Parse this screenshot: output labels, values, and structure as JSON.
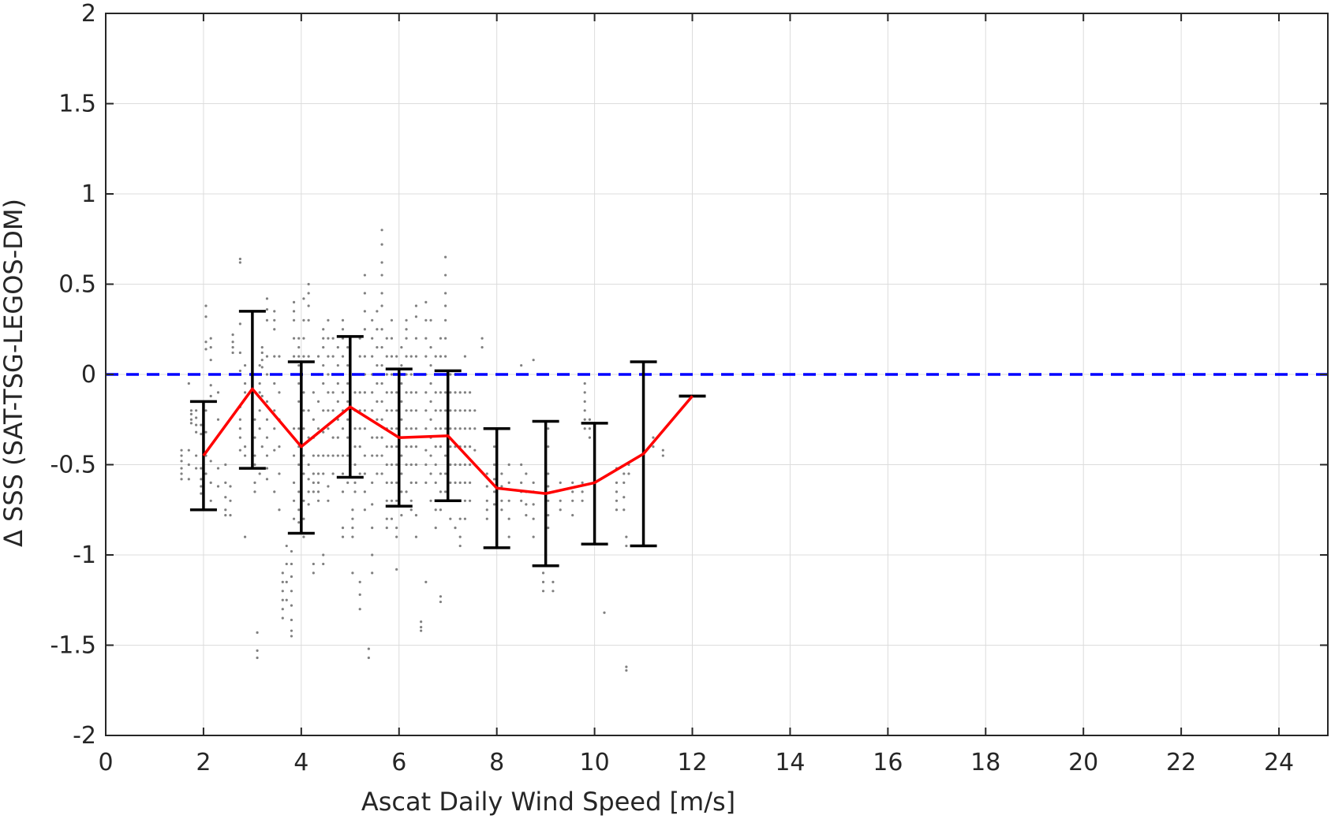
{
  "chart_data": {
    "type": "scatter",
    "title": "",
    "xlabel": "Ascat Daily Wind Speed [m/s]",
    "ylabel": "Δ SSS (SAT-TSG-LEGOS-DM)",
    "xlim": [
      0,
      25
    ],
    "ylim": [
      -2,
      2
    ],
    "xticks": [
      0,
      2,
      4,
      6,
      8,
      10,
      12,
      14,
      16,
      18,
      20,
      22,
      24
    ],
    "yticks": [
      -2,
      -1.5,
      -1,
      -0.5,
      0,
      0.5,
      1,
      1.5,
      2
    ],
    "grid": true,
    "legend": "none",
    "colors": {
      "scatter": "#808080",
      "mean_line": "#ff0000",
      "error_bars": "#000000",
      "reference_line": "#0000ff",
      "grid": "#dcdcdc",
      "axes": "#262626"
    },
    "reference_line": {
      "y": 0,
      "style": "dashed"
    },
    "mean_line": {
      "x": [
        2,
        3,
        4,
        5,
        6,
        7,
        8,
        9,
        10,
        11,
        12
      ],
      "y": [
        -0.45,
        -0.08,
        -0.4,
        -0.18,
        -0.35,
        -0.34,
        -0.63,
        -0.66,
        -0.6,
        -0.44,
        -0.12
      ]
    },
    "error_bars": [
      {
        "x": 2,
        "lower": -0.75,
        "upper": -0.15
      },
      {
        "x": 3,
        "lower": -0.52,
        "upper": 0.35
      },
      {
        "x": 4,
        "lower": -0.88,
        "upper": 0.07
      },
      {
        "x": 5,
        "lower": -0.57,
        "upper": 0.21
      },
      {
        "x": 6,
        "lower": -0.73,
        "upper": 0.03
      },
      {
        "x": 7,
        "lower": -0.7,
        "upper": 0.02
      },
      {
        "x": 8,
        "lower": -0.96,
        "upper": -0.3
      },
      {
        "x": 9,
        "lower": -1.06,
        "upper": -0.26
      },
      {
        "x": 10,
        "lower": -0.94,
        "upper": -0.27
      },
      {
        "x": 11,
        "lower": -0.95,
        "upper": 0.07
      },
      {
        "x": 12,
        "lower": -0.12,
        "upper": -0.12
      }
    ],
    "scatter_clusters": [
      {
        "x": 1.55,
        "y": [
          -0.42,
          -0.45,
          -0.48,
          -0.52,
          -0.55,
          -0.58
        ]
      },
      {
        "x": 1.7,
        "y": [
          -0.05,
          -0.42,
          -0.5,
          -0.58
        ]
      },
      {
        "x": 1.75,
        "y": [
          -0.2,
          -0.22,
          -0.25,
          -0.27
        ]
      },
      {
        "x": 1.85,
        "y": [
          -0.2,
          -0.24,
          -0.28,
          -0.32,
          -0.45,
          -0.52
        ]
      },
      {
        "x": 1.95,
        "y": [
          -0.28,
          -0.33,
          -0.52,
          -0.58,
          -0.62,
          -0.66
        ]
      },
      {
        "x": 2.05,
        "y": [
          0.38,
          0.32,
          0.18,
          0.14,
          -0.2,
          -0.32,
          -0.45,
          -0.55
        ]
      },
      {
        "x": 2.15,
        "y": [
          0.2,
          0.15,
          0.08,
          -0.06,
          -0.12,
          -0.48,
          -0.6,
          -0.7
        ]
      },
      {
        "x": 2.3,
        "y": [
          -0.1,
          -0.25,
          -0.52,
          -0.62
        ]
      },
      {
        "x": 2.45,
        "y": [
          -0.5,
          -0.6,
          -0.68,
          -0.75,
          -0.78
        ]
      },
      {
        "x": 2.55,
        "y": [
          -0.62,
          -0.7,
          -0.78
        ]
      },
      {
        "x": 2.6,
        "y": [
          0.22,
          0.18,
          0.15,
          0.12
        ]
      },
      {
        "x": 2.75,
        "y": [
          0.64,
          0.62,
          0.28,
          0.12,
          0.02,
          -0.18,
          -0.25,
          -0.3,
          -0.35,
          -0.42
        ]
      },
      {
        "x": 2.85,
        "y": [
          0.05,
          -0.05,
          -0.1,
          -0.4,
          -0.45,
          -0.52,
          -0.9
        ]
      },
      {
        "x": 3.05,
        "y": [
          -0.25,
          -0.35,
          -0.45,
          -0.5,
          -0.6,
          -0.65
        ]
      },
      {
        "x": 3.1,
        "y": [
          -1.43,
          -1.53,
          -1.57
        ]
      },
      {
        "x": 3.15,
        "y": [
          0.05,
          -0.05,
          -0.1,
          -0.2,
          -0.3,
          -0.55
        ]
      },
      {
        "x": 3.2,
        "y": [
          0.15,
          0.12,
          0.08,
          0.04,
          -0.12,
          -0.4
        ]
      },
      {
        "x": 3.3,
        "y": [
          0.42,
          0.36,
          0.3,
          0.1,
          0.0,
          -0.15,
          -0.25,
          -0.35,
          -0.45,
          -0.52,
          -0.58
        ]
      },
      {
        "x": 3.45,
        "y": [
          0.35,
          0.3,
          0.25,
          0.1,
          -0.05,
          -0.2,
          -0.3,
          -0.42,
          -0.65
        ]
      },
      {
        "x": 3.55,
        "y": [
          0.1,
          0.0,
          -0.1,
          -0.25,
          -0.4,
          -0.55,
          -0.75
        ]
      },
      {
        "x": 3.62,
        "y": [
          -1.1,
          -1.15,
          -1.2,
          -1.25,
          -1.3,
          -1.35
        ]
      },
      {
        "x": 3.7,
        "y": [
          -0.95,
          -1.05,
          -1.15,
          -1.25
        ]
      },
      {
        "x": 3.8,
        "y": [
          -0.98,
          -1.05,
          -1.12,
          -1.2,
          -1.28,
          -1.36,
          -1.42,
          -1.45
        ]
      },
      {
        "x": 3.85,
        "y": [
          0.4,
          0.35,
          0.3,
          0.2,
          0.1,
          0.0,
          -0.3,
          -0.45,
          -0.6,
          -0.7,
          -0.8
        ]
      },
      {
        "x": 3.95,
        "y": [
          0.2,
          0.15,
          0.1,
          0.05,
          -0.05,
          -0.15,
          -0.3,
          -0.4,
          -0.5,
          -0.65,
          -0.75,
          -0.82
        ]
      },
      {
        "x": 4.05,
        "y": [
          0.42,
          0.3,
          0.2,
          0.1,
          -0.1,
          -0.2,
          -0.3,
          -0.45,
          -0.55,
          -0.7,
          -0.8,
          -0.9
        ]
      },
      {
        "x": 4.15,
        "y": [
          0.5,
          0.45,
          0.38,
          0.3,
          0.1,
          -0.2,
          -0.35,
          -0.5,
          -0.58,
          -0.65,
          -0.72
        ]
      },
      {
        "x": 4.25,
        "y": [
          0.0,
          -0.1,
          -0.25,
          -0.35,
          -0.45,
          -0.55,
          -0.6,
          -0.65,
          -1.05,
          -1.1
        ]
      },
      {
        "x": 4.35,
        "y": [
          0.1,
          0.0,
          -0.15,
          -0.3,
          -0.45,
          -0.55,
          -0.6,
          -0.65,
          -0.7
        ]
      },
      {
        "x": 4.45,
        "y": [
          0.25,
          0.2,
          0.15,
          0.05,
          -0.05,
          -0.2,
          -0.32,
          -0.45,
          -0.55,
          -1.0,
          -1.05
        ]
      },
      {
        "x": 4.55,
        "y": [
          0.3,
          0.2,
          0.1,
          0.0,
          -0.1,
          -0.2,
          -0.3,
          -0.45,
          -0.62,
          -0.7
        ]
      },
      {
        "x": 4.65,
        "y": [
          0.2,
          0.1,
          0.0,
          -0.1,
          -0.2,
          -0.35,
          -0.45,
          -0.55
        ]
      },
      {
        "x": 4.75,
        "y": [
          0.15,
          0.05,
          -0.05,
          -0.15,
          -0.25,
          -0.35,
          -0.45
        ]
      },
      {
        "x": 4.85,
        "y": [
          0.3,
          0.25,
          0.2,
          0.1,
          0.0,
          -0.1,
          -0.2,
          -0.3,
          -0.45,
          -0.55,
          -0.65,
          -0.85,
          -0.9
        ]
      },
      {
        "x": 4.95,
        "y": [
          0.15,
          0.05,
          -0.05,
          -0.15,
          -0.25,
          -0.35,
          -0.45,
          -0.6
        ]
      },
      {
        "x": 5.05,
        "y": [
          -0.75,
          -0.8,
          -0.85,
          -0.9,
          -1.1
        ]
      },
      {
        "x": 5.1,
        "y": [
          0.0,
          -0.1,
          -0.2,
          -0.3,
          -0.4,
          -0.5,
          -0.6,
          -0.65
        ]
      },
      {
        "x": 5.2,
        "y": [
          0.2,
          0.1,
          0.0,
          -0.1,
          -0.2,
          -0.3,
          -0.4,
          -0.55,
          -1.15,
          -1.22,
          -1.3
        ]
      },
      {
        "x": 5.3,
        "y": [
          0.55,
          0.45,
          0.35,
          0.25,
          0.1,
          0.0,
          -0.1,
          -0.2,
          -0.3,
          -0.45,
          -0.55,
          -0.65,
          -0.75
        ]
      },
      {
        "x": 5.38,
        "y": [
          -1.52,
          -1.57
        ]
      },
      {
        "x": 5.45,
        "y": [
          0.3,
          0.2,
          0.1,
          0.0,
          -0.1,
          -0.2,
          -0.35,
          -0.45,
          -0.6,
          -0.72,
          -0.85,
          -1.0,
          -1.1
        ]
      },
      {
        "x": 5.55,
        "y": [
          0.35,
          0.25,
          0.15,
          0.05,
          -0.05,
          -0.15,
          -0.25,
          -0.35,
          -0.45,
          -0.55
        ]
      },
      {
        "x": 5.65,
        "y": [
          0.8,
          0.72,
          0.62,
          0.55,
          0.45,
          0.38,
          0.25,
          0.15,
          0.05,
          -0.05,
          -0.15,
          -0.25,
          -0.35,
          -0.45,
          -0.55
        ]
      },
      {
        "x": 5.75,
        "y": [
          0.2,
          0.1,
          0.0,
          -0.1,
          -0.2,
          -0.3,
          -0.4,
          -0.5,
          -0.6,
          -0.7,
          -0.8,
          -0.85
        ]
      },
      {
        "x": 5.85,
        "y": [
          0.3,
          0.2,
          0.1,
          0.0,
          -0.1,
          -0.2,
          -0.3,
          -0.4,
          -0.5,
          -0.6,
          -0.7,
          -0.8
        ]
      },
      {
        "x": 5.95,
        "y": [
          0.1,
          0.0,
          -0.1,
          -0.2,
          -0.3,
          -0.4,
          -0.5,
          -0.6,
          -0.7,
          -0.85,
          -0.9,
          -1.08
        ]
      },
      {
        "x": 6.05,
        "y": [
          0.15,
          0.05,
          -0.05,
          -0.15,
          -0.25,
          -0.35,
          -0.45,
          -0.55,
          -0.65,
          -0.78
        ]
      },
      {
        "x": 6.15,
        "y": [
          0.3,
          0.25,
          0.2,
          0.1,
          0.0,
          -0.1,
          -0.2,
          -0.3,
          -0.4,
          -0.5,
          -0.65
        ]
      },
      {
        "x": 6.25,
        "y": [
          0.1,
          0.0,
          -0.1,
          -0.2,
          -0.3,
          -0.4,
          -0.5,
          -0.6,
          -0.7,
          -0.75
        ]
      },
      {
        "x": 6.35,
        "y": [
          0.38,
          0.32,
          0.2,
          0.1,
          0.0,
          -0.1,
          -0.2,
          -0.3,
          -0.4,
          -0.5,
          -0.6,
          -0.78,
          -0.9
        ]
      },
      {
        "x": 6.45,
        "y": [
          -1.37,
          -1.4,
          -1.42
        ]
      },
      {
        "x": 6.55,
        "y": [
          0.4,
          0.3,
          0.2,
          0.1,
          0.0,
          -0.1,
          -0.2,
          -0.3,
          -0.42,
          -0.5,
          -0.6,
          -1.15
        ]
      },
      {
        "x": 6.65,
        "y": [
          0.3,
          0.15,
          0.05,
          -0.05,
          -0.15,
          -0.25,
          -0.35,
          -0.45,
          -0.55,
          -0.7
        ]
      },
      {
        "x": 6.75,
        "y": [
          0.1,
          0.0,
          -0.1,
          -0.2,
          -0.3,
          -0.4,
          -0.5,
          -0.6,
          -0.75,
          -0.85
        ]
      },
      {
        "x": 6.85,
        "y": [
          0.2,
          0.1,
          0.0,
          -0.1,
          -0.2,
          -0.3,
          -0.4,
          -0.55,
          -0.65,
          -0.75,
          -1.23,
          -1.26
        ]
      },
      {
        "x": 6.95,
        "y": [
          0.65,
          0.55,
          0.45,
          0.38,
          0.3,
          0.2,
          0.1,
          0.0,
          -0.1,
          -0.2,
          -0.3,
          -0.45,
          -0.55,
          -0.65
        ]
      },
      {
        "x": 7.05,
        "y": [
          0.0,
          -0.1,
          -0.2,
          -0.3,
          -0.4,
          -0.5,
          -0.6,
          -0.7,
          -0.8
        ]
      },
      {
        "x": 7.15,
        "y": [
          0.0,
          -0.1,
          -0.2,
          -0.3,
          -0.4,
          -0.5,
          -0.6,
          -0.7,
          -0.85
        ]
      },
      {
        "x": 7.25,
        "y": [
          -0.1,
          -0.2,
          -0.3,
          -0.4,
          -0.5,
          -0.6,
          -0.7,
          -0.8,
          -0.9,
          -0.95
        ]
      },
      {
        "x": 7.35,
        "y": [
          0.1,
          0.0,
          -0.1,
          -0.2,
          -0.3,
          -0.4,
          -0.5,
          -0.6,
          -0.7,
          -0.8
        ]
      },
      {
        "x": 7.45,
        "y": [
          -0.1,
          -0.2,
          -0.3,
          -0.4,
          -0.5,
          -0.6,
          -0.7
        ]
      },
      {
        "x": 7.55,
        "y": [
          -0.2,
          -0.3,
          -0.42,
          -0.5
        ]
      },
      {
        "x": 7.7,
        "y": [
          0.2,
          0.15
        ]
      },
      {
        "x": 7.8,
        "y": [
          -0.55,
          -0.62,
          -0.7,
          -0.75,
          -0.8
        ]
      },
      {
        "x": 7.95,
        "y": [
          -0.4,
          -0.5,
          -0.58,
          -0.65,
          -0.72
        ]
      },
      {
        "x": 8.1,
        "y": [
          -0.55,
          -0.62,
          -0.7,
          -0.75
        ]
      },
      {
        "x": 8.25,
        "y": [
          -0.5,
          -0.6,
          -0.7,
          -0.8,
          -0.9
        ]
      },
      {
        "x": 8.5,
        "y": [
          0.05,
          -0.5,
          -0.6,
          -0.65,
          -0.7
        ]
      },
      {
        "x": 8.6,
        "y": [
          -0.55,
          -0.65,
          -0.72,
          -0.78
        ]
      },
      {
        "x": 8.75,
        "y": [
          0.08,
          -0.6,
          -0.65,
          -0.72,
          -0.8,
          -0.9
        ]
      },
      {
        "x": 8.95,
        "y": [
          -1.1,
          -1.15,
          -1.2
        ]
      },
      {
        "x": 9.05,
        "y": [
          -0.3,
          -0.4,
          -0.55,
          -0.62,
          -0.7,
          -0.78,
          -0.85
        ]
      },
      {
        "x": 9.15,
        "y": [
          -1.15,
          -1.2
        ]
      },
      {
        "x": 9.3,
        "y": [
          -0.6,
          -0.7,
          -0.75
        ]
      },
      {
        "x": 9.55,
        "y": [
          -0.6,
          -0.65,
          -0.7,
          -0.78
        ]
      },
      {
        "x": 9.75,
        "y": [
          -0.6,
          -0.65,
          -0.7
        ]
      },
      {
        "x": 9.8,
        "y": [
          -0.05,
          -0.1,
          -0.15,
          -0.2,
          -0.25,
          -0.3
        ]
      },
      {
        "x": 9.9,
        "y": [
          -0.25,
          -0.3,
          -0.35
        ]
      },
      {
        "x": 10.2,
        "y": [
          -1.32
        ]
      },
      {
        "x": 10.45,
        "y": [
          -0.52,
          -0.6,
          -0.65,
          -0.7,
          -0.75
        ]
      },
      {
        "x": 10.6,
        "y": [
          -0.55,
          -0.6,
          -0.68,
          -0.75
        ]
      },
      {
        "x": 10.65,
        "y": [
          -0.9,
          -0.95,
          -1.62,
          -1.64
        ]
      },
      {
        "x": 10.7,
        "y": [
          -0.5,
          -0.55
        ]
      },
      {
        "x": 11.2,
        "y": [
          -0.35,
          -0.4
        ]
      },
      {
        "x": 11.4,
        "y": [
          -0.42,
          -0.45
        ]
      }
    ]
  }
}
